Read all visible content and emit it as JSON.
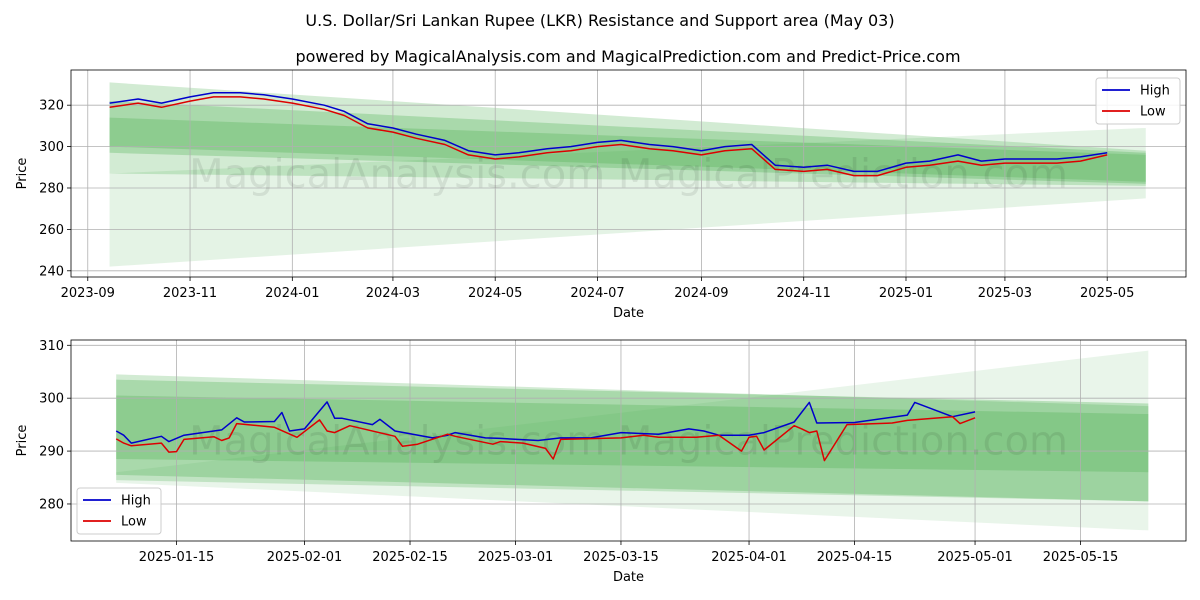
{
  "title": "U.S. Dollar/Sri Lankan Rupee (LKR) Resistance and Support area (May 03)",
  "subtitle": "powered by MagicalAnalysis.com and MagicalPrediction.com and Predict-Price.com",
  "watermark": "MagicalAnalysis.com    MagicalPrediction.com",
  "colors": {
    "high": "#0000cc",
    "low": "#dd0000",
    "band": "#4caf50",
    "grid": "#b0b0b0"
  },
  "chart_data": [
    {
      "type": "line",
      "xlabel": "Date",
      "ylabel": "Price",
      "xlim": [
        "2023-08-22",
        "2025-06-17"
      ],
      "ylim": [
        237,
        337
      ],
      "x_ticks": [
        "2023-09",
        "2023-11",
        "2024-01",
        "2024-03",
        "2024-05",
        "2024-07",
        "2024-09",
        "2024-11",
        "2025-01",
        "2025-03",
        "2025-05"
      ],
      "y_ticks": [
        240,
        260,
        280,
        300,
        320
      ],
      "grid": true,
      "legend": "top-right",
      "series": [
        {
          "name": "High",
          "x": [
            "2023-09-14",
            "2023-10-01",
            "2023-10-15",
            "2023-11-01",
            "2023-11-15",
            "2023-12-01",
            "2023-12-15",
            "2024-01-01",
            "2024-01-20",
            "2024-02-01",
            "2024-02-15",
            "2024-03-01",
            "2024-03-15",
            "2024-04-01",
            "2024-04-15",
            "2024-05-01",
            "2024-05-15",
            "2024-06-01",
            "2024-06-15",
            "2024-07-01",
            "2024-07-15",
            "2024-08-01",
            "2024-08-15",
            "2024-09-01",
            "2024-09-15",
            "2024-10-01",
            "2024-10-15",
            "2024-11-01",
            "2024-11-15",
            "2024-12-01",
            "2024-12-15",
            "2025-01-01",
            "2025-01-15",
            "2025-02-01",
            "2025-02-15",
            "2025-03-01",
            "2025-03-15",
            "2025-04-01",
            "2025-04-15",
            "2025-05-01"
          ],
          "values": [
            321,
            323,
            321,
            324,
            326,
            326,
            325,
            323,
            320,
            317,
            311,
            309,
            306,
            303,
            298,
            296,
            297,
            299,
            300,
            302,
            303,
            301,
            300,
            298,
            300,
            301,
            291,
            290,
            291,
            288,
            288,
            292,
            293,
            296,
            293,
            294,
            294,
            294,
            295,
            297
          ]
        },
        {
          "name": "Low",
          "x": [
            "2023-09-14",
            "2023-10-01",
            "2023-10-15",
            "2023-11-01",
            "2023-11-15",
            "2023-12-01",
            "2023-12-15",
            "2024-01-01",
            "2024-01-20",
            "2024-02-01",
            "2024-02-15",
            "2024-03-01",
            "2024-03-15",
            "2024-04-01",
            "2024-04-15",
            "2024-05-01",
            "2024-05-15",
            "2024-06-01",
            "2024-06-15",
            "2024-07-01",
            "2024-07-15",
            "2024-08-01",
            "2024-08-15",
            "2024-09-01",
            "2024-09-15",
            "2024-10-01",
            "2024-10-15",
            "2024-11-01",
            "2024-11-15",
            "2024-12-01",
            "2024-12-15",
            "2025-01-01",
            "2025-01-15",
            "2025-02-01",
            "2025-02-15",
            "2025-03-01",
            "2025-03-15",
            "2025-04-01",
            "2025-04-15",
            "2025-05-01"
          ],
          "values": [
            319,
            321,
            319,
            322,
            324,
            324,
            323,
            321,
            318,
            315,
            309,
            307,
            304,
            301,
            296,
            294,
            295,
            297,
            298,
            300,
            301,
            299,
            298,
            296,
            298,
            299,
            289,
            288,
            289,
            286,
            286,
            290,
            291,
            293,
            291,
            292,
            292,
            292,
            293,
            296
          ]
        }
      ],
      "bands": [
        {
          "x": [
            "2023-09-14",
            "2025-05-24"
          ],
          "upper": [
            331,
            298
          ],
          "lower": [
            287,
            281
          ],
          "opacity": 0.25
        },
        {
          "x": [
            "2023-09-14",
            "2025-05-24"
          ],
          "upper": [
            322,
            297
          ],
          "lower": [
            297,
            282
          ],
          "opacity": 0.3
        },
        {
          "x": [
            "2023-09-14",
            "2025-05-24"
          ],
          "upper": [
            314,
            296
          ],
          "lower": [
            300,
            283
          ],
          "opacity": 0.3
        },
        {
          "x": [
            "2023-09-14",
            "2025-05-24"
          ],
          "upper": [
            287,
            309
          ],
          "lower": [
            242,
            275
          ],
          "opacity": 0.15
        }
      ]
    },
    {
      "type": "line",
      "xlabel": "Date",
      "ylabel": "Price",
      "xlim": [
        "2025-01-01",
        "2025-05-29"
      ],
      "ylim": [
        273,
        311
      ],
      "x_ticks": [
        "2025-01-15",
        "2025-02-01",
        "2025-02-15",
        "2025-03-01",
        "2025-03-15",
        "2025-04-01",
        "2025-04-15",
        "2025-05-01",
        "2025-05-15"
      ],
      "y_ticks": [
        280,
        290,
        300,
        310
      ],
      "grid": true,
      "legend": "bottom-left",
      "series": [
        {
          "name": "High",
          "x": [
            "2025-01-07",
            "2025-01-08",
            "2025-01-09",
            "2025-01-13",
            "2025-01-14",
            "2025-01-16",
            "2025-01-21",
            "2025-01-23",
            "2025-01-24",
            "2025-01-28",
            "2025-01-29",
            "2025-01-30",
            "2025-02-01",
            "2025-02-04",
            "2025-02-05",
            "2025-02-06",
            "2025-02-10",
            "2025-02-11",
            "2025-02-13",
            "2025-02-18",
            "2025-02-20",
            "2025-02-21",
            "2025-02-25",
            "2025-02-27",
            "2025-03-04",
            "2025-03-07",
            "2025-03-11",
            "2025-03-15",
            "2025-03-20",
            "2025-03-24",
            "2025-03-26",
            "2025-03-28",
            "2025-04-01",
            "2025-04-03",
            "2025-04-07",
            "2025-04-09",
            "2025-04-10",
            "2025-04-15",
            "2025-04-20",
            "2025-04-22",
            "2025-04-23",
            "2025-04-28",
            "2025-05-01"
          ],
          "values": [
            293.8,
            293.0,
            291.5,
            292.8,
            291.8,
            293.0,
            294.0,
            296.3,
            295.5,
            295.6,
            297.3,
            293.8,
            294.2,
            299.3,
            296.2,
            296.2,
            295.0,
            296.0,
            293.8,
            292.5,
            293.0,
            293.5,
            292.5,
            292.4,
            292.0,
            292.5,
            292.5,
            293.5,
            293.2,
            294.2,
            293.8,
            293.0,
            293.0,
            293.5,
            295.5,
            299.2,
            295.3,
            295.4,
            296.4,
            296.8,
            299.2,
            296.5,
            297.4
          ]
        },
        {
          "name": "Low",
          "x": [
            "2025-01-07",
            "2025-01-08",
            "2025-01-09",
            "2025-01-13",
            "2025-01-14",
            "2025-01-15",
            "2025-01-16",
            "2025-01-20",
            "2025-01-21",
            "2025-01-22",
            "2025-01-23",
            "2025-01-28",
            "2025-01-31",
            "2025-02-03",
            "2025-02-04",
            "2025-02-05",
            "2025-02-07",
            "2025-02-13",
            "2025-02-14",
            "2025-02-16",
            "2025-02-20",
            "2025-02-21",
            "2025-02-26",
            "2025-02-27",
            "2025-03-02",
            "2025-03-05",
            "2025-03-06",
            "2025-03-07",
            "2025-03-15",
            "2025-03-18",
            "2025-03-20",
            "2025-03-25",
            "2025-03-28",
            "2025-03-31",
            "2025-04-01",
            "2025-04-02",
            "2025-04-03",
            "2025-04-07",
            "2025-04-08",
            "2025-04-09",
            "2025-04-10",
            "2025-04-11",
            "2025-04-14",
            "2025-04-20",
            "2025-04-22",
            "2025-04-28",
            "2025-04-29",
            "2025-05-01"
          ],
          "values": [
            292.3,
            291.5,
            291.0,
            291.5,
            289.8,
            289.9,
            292.2,
            292.7,
            292.0,
            292.5,
            295.2,
            294.5,
            292.6,
            295.9,
            293.8,
            293.5,
            294.8,
            292.8,
            290.9,
            291.3,
            293.2,
            292.8,
            291.3,
            291.8,
            291.5,
            290.5,
            288.5,
            292.2,
            292.5,
            293.0,
            292.6,
            292.6,
            293.0,
            290.0,
            292.6,
            292.8,
            290.2,
            294.8,
            294.2,
            293.5,
            293.8,
            288.2,
            295.0,
            295.3,
            295.8,
            296.5,
            295.2,
            296.3
          ]
        }
      ],
      "bands": [
        {
          "x": [
            "2025-01-07",
            "2025-05-24"
          ],
          "upper": [
            304.5,
            298.5
          ],
          "lower": [
            284.5,
            280.5
          ],
          "opacity": 0.25
        },
        {
          "x": [
            "2025-01-07",
            "2025-05-24"
          ],
          "upper": [
            303.5,
            299.0
          ],
          "lower": [
            285.5,
            280.5
          ],
          "opacity": 0.3
        },
        {
          "x": [
            "2025-01-07",
            "2025-05-24"
          ],
          "upper": [
            300.5,
            297.0
          ],
          "lower": [
            288.5,
            286.0
          ],
          "opacity": 0.3
        },
        {
          "x": [
            "2025-01-07",
            "2025-05-24"
          ],
          "upper": [
            286.0,
            309.0
          ],
          "lower": [
            284.0,
            275.0
          ],
          "opacity": 0.12
        }
      ]
    }
  ]
}
